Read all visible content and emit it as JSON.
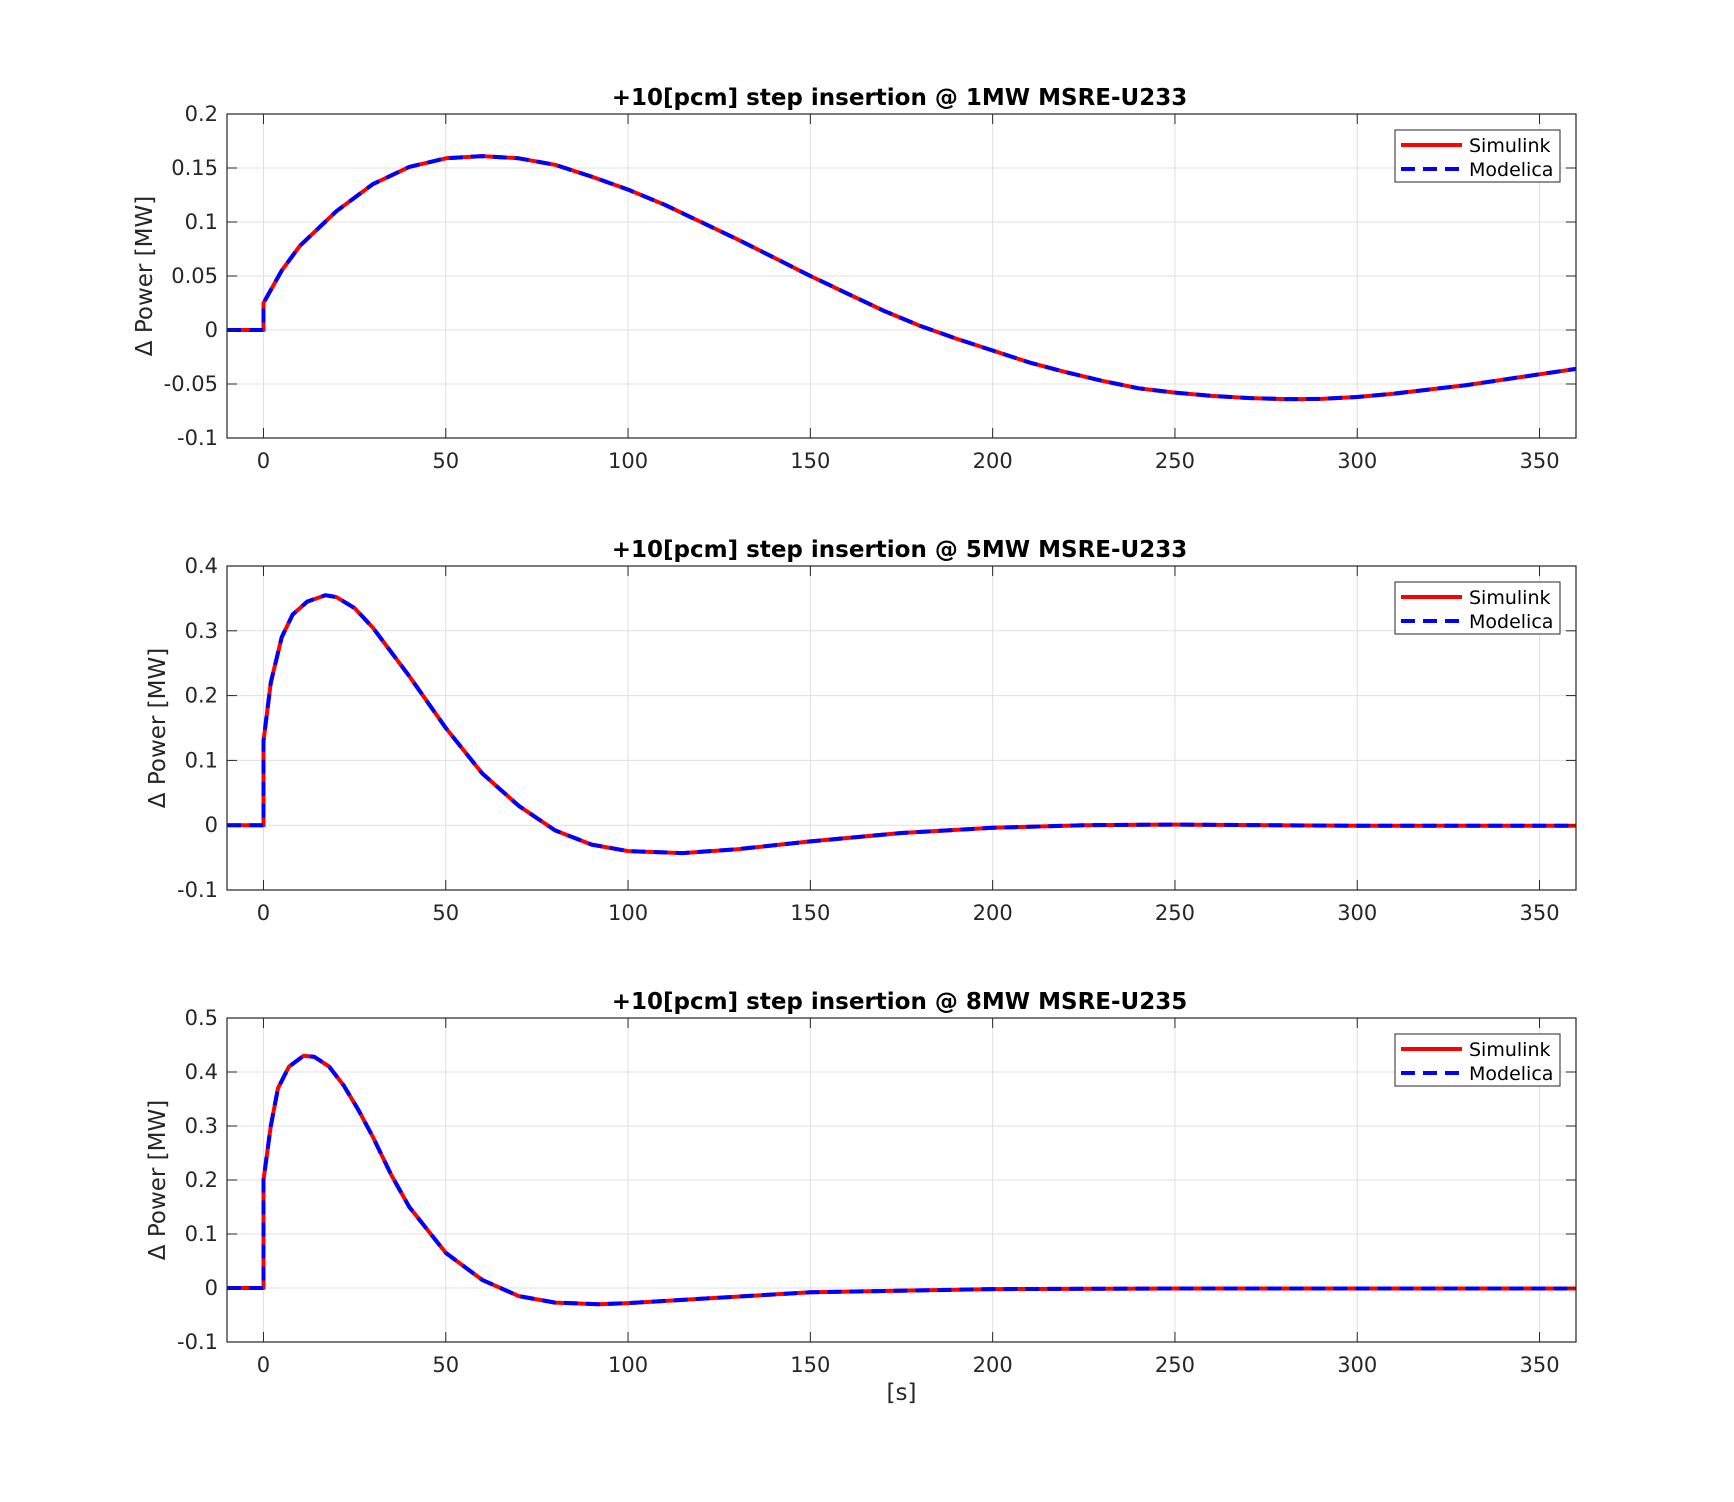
{
  "figure": {
    "xlabel": "[s]",
    "ylabel": "Δ Power [MW]"
  },
  "legend": {
    "simulink": "Simulink",
    "modelica": "Modelica"
  },
  "colors": {
    "simulink": "#ff0000",
    "modelica": "#0000ff",
    "grid": "#dfdfdf",
    "axes": "#262626"
  },
  "chart_data": [
    {
      "type": "line",
      "title": "+10[pcm] step insertion @ 1MW MSRE-U233",
      "xlabel": "",
      "ylabel": "Δ Power [MW]",
      "xlim": [
        -10,
        360
      ],
      "ylim": [
        -0.1,
        0.2
      ],
      "xticks": [
        0,
        50,
        100,
        150,
        200,
        250,
        300,
        350
      ],
      "xtick_labels": [
        "0",
        "50",
        "100",
        "150",
        "200",
        "250",
        "300",
        "350"
      ],
      "yticks": [
        -0.1,
        -0.05,
        0,
        0.05,
        0.1,
        0.15,
        0.2
      ],
      "ytick_labels": [
        "-0.1",
        "-0.05",
        "0",
        "0.05",
        "0.1",
        "0.15",
        "0.2"
      ],
      "grid": true,
      "legend_position": "top-right",
      "series": [
        {
          "name": "Simulink",
          "style": "solid",
          "x": [
            -10,
            0,
            0.01,
            5,
            10,
            20,
            30,
            40,
            50,
            60,
            70,
            80,
            90,
            100,
            110,
            120,
            130,
            140,
            150,
            160,
            170,
            180,
            190,
            200,
            210,
            220,
            230,
            240,
            250,
            260,
            270,
            280,
            285,
            290,
            300,
            310,
            320,
            330,
            340,
            350,
            360
          ],
          "y": [
            0,
            0,
            0.025,
            0.055,
            0.078,
            0.11,
            0.135,
            0.151,
            0.159,
            0.161,
            0.159,
            0.153,
            0.142,
            0.13,
            0.116,
            0.1,
            0.084,
            0.067,
            0.05,
            0.034,
            0.018,
            0.004,
            -0.008,
            -0.019,
            -0.03,
            -0.039,
            -0.047,
            -0.054,
            -0.058,
            -0.061,
            -0.063,
            -0.064,
            -0.064,
            -0.0638,
            -0.062,
            -0.059,
            -0.055,
            -0.051,
            -0.046,
            -0.041,
            -0.036
          ]
        },
        {
          "name": "Modelica",
          "style": "dashed",
          "x": [
            -10,
            0,
            0.01,
            5,
            10,
            20,
            30,
            40,
            50,
            60,
            70,
            80,
            90,
            100,
            110,
            120,
            130,
            140,
            150,
            160,
            170,
            180,
            190,
            200,
            210,
            220,
            230,
            240,
            250,
            260,
            270,
            280,
            285,
            290,
            300,
            310,
            320,
            330,
            340,
            350,
            360
          ],
          "y": [
            0,
            0,
            0.025,
            0.055,
            0.078,
            0.11,
            0.135,
            0.151,
            0.159,
            0.161,
            0.159,
            0.153,
            0.142,
            0.13,
            0.116,
            0.1,
            0.084,
            0.067,
            0.05,
            0.034,
            0.018,
            0.004,
            -0.008,
            -0.019,
            -0.03,
            -0.039,
            -0.047,
            -0.054,
            -0.058,
            -0.061,
            -0.063,
            -0.064,
            -0.064,
            -0.0638,
            -0.062,
            -0.059,
            -0.055,
            -0.051,
            -0.046,
            -0.041,
            -0.036
          ]
        }
      ]
    },
    {
      "type": "line",
      "title": "+10[pcm] step insertion @ 5MW MSRE-U233",
      "xlabel": "",
      "ylabel": "Δ Power [MW]",
      "xlim": [
        -10,
        360
      ],
      "ylim": [
        -0.1,
        0.4
      ],
      "xticks": [
        0,
        50,
        100,
        150,
        200,
        250,
        300,
        350
      ],
      "xtick_labels": [
        "0",
        "50",
        "100",
        "150",
        "200",
        "250",
        "300",
        "350"
      ],
      "yticks": [
        -0.1,
        0,
        0.1,
        0.2,
        0.3,
        0.4
      ],
      "ytick_labels": [
        "-0.1",
        "0",
        "0.1",
        "0.2",
        "0.3",
        "0.4"
      ],
      "grid": true,
      "legend_position": "top-right",
      "series": [
        {
          "name": "Simulink",
          "style": "solid",
          "x": [
            -10,
            0,
            0.01,
            2,
            5,
            8,
            12,
            17,
            20,
            25,
            30,
            40,
            50,
            60,
            70,
            80,
            90,
            100,
            115,
            130,
            150,
            175,
            200,
            225,
            250,
            300,
            360
          ],
          "y": [
            0,
            0,
            0.13,
            0.22,
            0.29,
            0.325,
            0.345,
            0.355,
            0.352,
            0.335,
            0.305,
            0.23,
            0.15,
            0.08,
            0.03,
            -0.008,
            -0.03,
            -0.04,
            -0.043,
            -0.037,
            -0.025,
            -0.012,
            -0.004,
            0,
            0.001,
            -0.001,
            -0.001
          ]
        },
        {
          "name": "Modelica",
          "style": "dashed",
          "x": [
            -10,
            0,
            0.01,
            2,
            5,
            8,
            12,
            17,
            20,
            25,
            30,
            40,
            50,
            60,
            70,
            80,
            90,
            100,
            115,
            130,
            150,
            175,
            200,
            225,
            250,
            300,
            360
          ],
          "y": [
            0,
            0,
            0.13,
            0.22,
            0.29,
            0.325,
            0.345,
            0.355,
            0.352,
            0.335,
            0.305,
            0.23,
            0.15,
            0.08,
            0.03,
            -0.008,
            -0.03,
            -0.04,
            -0.043,
            -0.037,
            -0.025,
            -0.012,
            -0.004,
            0,
            0.001,
            -0.001,
            -0.001
          ]
        }
      ]
    },
    {
      "type": "line",
      "title": "+10[pcm] step insertion @ 8MW MSRE-U235",
      "xlabel": "[s]",
      "ylabel": "Δ Power [MW]",
      "xlim": [
        -10,
        360
      ],
      "ylim": [
        -0.1,
        0.5
      ],
      "xticks": [
        0,
        50,
        100,
        150,
        200,
        250,
        300,
        350
      ],
      "xtick_labels": [
        "0",
        "50",
        "100",
        "150",
        "200",
        "250",
        "300",
        "350"
      ],
      "yticks": [
        -0.1,
        0,
        0.1,
        0.2,
        0.3,
        0.4,
        0.5
      ],
      "ytick_labels": [
        "-0.1",
        "0",
        "0.1",
        "0.2",
        "0.3",
        "0.4",
        "0.5"
      ],
      "grid": true,
      "legend_position": "top-right",
      "series": [
        {
          "name": "Simulink",
          "style": "solid",
          "x": [
            -10,
            0,
            0.01,
            2,
            4,
            7,
            11,
            14,
            18,
            22,
            26,
            30,
            35,
            40,
            50,
            60,
            70,
            80,
            92,
            100,
            120,
            150,
            200,
            250,
            300,
            360
          ],
          "y": [
            0,
            0,
            0.2,
            0.3,
            0.37,
            0.41,
            0.43,
            0.428,
            0.41,
            0.375,
            0.33,
            0.28,
            0.21,
            0.15,
            0.065,
            0.015,
            -0.015,
            -0.027,
            -0.03,
            -0.028,
            -0.02,
            -0.008,
            -0.002,
            -0.001,
            -0.001,
            -0.001
          ]
        },
        {
          "name": "Modelica",
          "style": "dashed",
          "x": [
            -10,
            0,
            0.01,
            2,
            4,
            7,
            11,
            14,
            18,
            22,
            26,
            30,
            35,
            40,
            50,
            60,
            70,
            80,
            92,
            100,
            120,
            150,
            200,
            250,
            300,
            360
          ],
          "y": [
            0,
            0,
            0.2,
            0.3,
            0.37,
            0.41,
            0.43,
            0.428,
            0.41,
            0.375,
            0.33,
            0.28,
            0.21,
            0.15,
            0.065,
            0.015,
            -0.015,
            -0.027,
            -0.03,
            -0.028,
            -0.02,
            -0.008,
            -0.002,
            -0.001,
            -0.001,
            -0.001
          ]
        }
      ]
    }
  ]
}
